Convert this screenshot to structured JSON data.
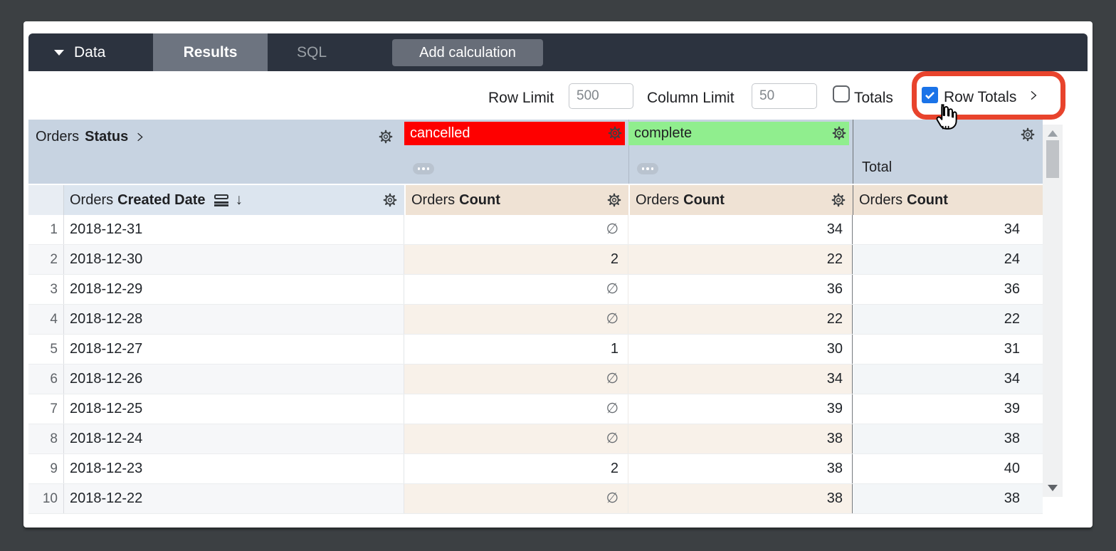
{
  "toolbar": {
    "data_label": "Data",
    "results_label": "Results",
    "sql_label": "SQL",
    "add_calculation_label": "Add calculation"
  },
  "controls": {
    "row_limit_label": "Row Limit",
    "row_limit_value": "500",
    "column_limit_label": "Column Limit",
    "column_limit_value": "50",
    "totals_label": "Totals",
    "totals_checked": false,
    "row_totals_label": "Row Totals",
    "row_totals_checked": true
  },
  "pivot": {
    "view": "Orders",
    "field": "Status",
    "values": [
      {
        "label": "cancelled",
        "color": "#fe0000",
        "text_color": "#ffffff"
      },
      {
        "label": "complete",
        "color": "#90ee8e",
        "text_color": "#202124"
      }
    ],
    "total_label": "Total"
  },
  "dimension": {
    "view": "Orders",
    "field": "Created Date"
  },
  "measure": {
    "view": "Orders",
    "field": "Count"
  },
  "null_symbol": "∅",
  "rows": [
    {
      "index": "1",
      "date": "2018-12-31",
      "cancelled": "∅",
      "complete": "34",
      "total": "34"
    },
    {
      "index": "2",
      "date": "2018-12-30",
      "cancelled": "2",
      "complete": "22",
      "total": "24"
    },
    {
      "index": "3",
      "date": "2018-12-29",
      "cancelled": "∅",
      "complete": "36",
      "total": "36"
    },
    {
      "index": "4",
      "date": "2018-12-28",
      "cancelled": "∅",
      "complete": "22",
      "total": "22"
    },
    {
      "index": "5",
      "date": "2018-12-27",
      "cancelled": "1",
      "complete": "30",
      "total": "31"
    },
    {
      "index": "6",
      "date": "2018-12-26",
      "cancelled": "∅",
      "complete": "34",
      "total": "34"
    },
    {
      "index": "7",
      "date": "2018-12-25",
      "cancelled": "∅",
      "complete": "39",
      "total": "39"
    },
    {
      "index": "8",
      "date": "2018-12-24",
      "cancelled": "∅",
      "complete": "38",
      "total": "38"
    },
    {
      "index": "9",
      "date": "2018-12-23",
      "cancelled": "2",
      "complete": "38",
      "total": "40"
    },
    {
      "index": "10",
      "date": "2018-12-22",
      "cancelled": "∅",
      "complete": "38",
      "total": "38"
    }
  ],
  "colors": {
    "accent_blue": "#1a73e8",
    "annotation_red": "#e8432c",
    "topbar": "#2c333f",
    "pivot_band": "#c7d3e1",
    "measure_header": "#efe2d4"
  }
}
